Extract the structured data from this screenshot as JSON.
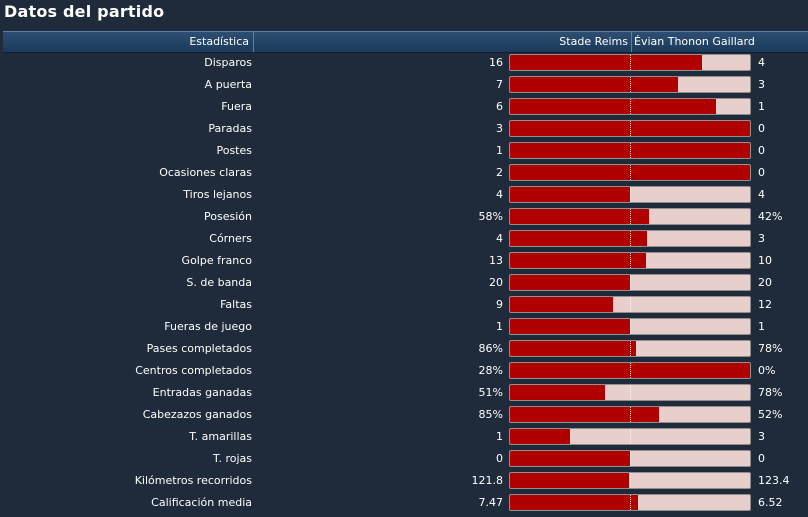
{
  "title": "Datos del partido",
  "header": {
    "stat": "Estadística",
    "home": "Stade Reims",
    "away": "Évian Thonon Gaillard"
  },
  "colors": {
    "home_bar": "#b00000",
    "away_bar": "#e8cfcb",
    "header_bg": "#1c3a5a",
    "page_bg": "#1f2b3a"
  },
  "rows": [
    {
      "label": "Disparos",
      "home": "16",
      "away": "4",
      "home_share": 0.8
    },
    {
      "label": "A puerta",
      "home": "7",
      "away": "3",
      "home_share": 0.7
    },
    {
      "label": "Fuera",
      "home": "6",
      "away": "1",
      "home_share": 0.857
    },
    {
      "label": "Paradas",
      "home": "3",
      "away": "0",
      "home_share": 1.0
    },
    {
      "label": "Postes",
      "home": "1",
      "away": "0",
      "home_share": 1.0
    },
    {
      "label": "Ocasiones claras",
      "home": "2",
      "away": "0",
      "home_share": 1.0
    },
    {
      "label": "Tiros lejanos",
      "home": "4",
      "away": "4",
      "home_share": 0.5
    },
    {
      "label": "Posesión",
      "home": "58%",
      "away": "42%",
      "home_share": 0.58
    },
    {
      "label": "Córners",
      "home": "4",
      "away": "3",
      "home_share": 0.571
    },
    {
      "label": "Golpe franco",
      "home": "13",
      "away": "10",
      "home_share": 0.565
    },
    {
      "label": "S. de banda",
      "home": "20",
      "away": "20",
      "home_share": 0.5
    },
    {
      "label": "Faltas",
      "home": "9",
      "away": "12",
      "home_share": 0.429
    },
    {
      "label": "Fueras de juego",
      "home": "1",
      "away": "1",
      "home_share": 0.5
    },
    {
      "label": "Pases completados",
      "home": "86%",
      "away": "78%",
      "home_share": 0.524
    },
    {
      "label": "Centros completados",
      "home": "28%",
      "away": "0%",
      "home_share": 1.0
    },
    {
      "label": "Entradas ganadas",
      "home": "51%",
      "away": "78%",
      "home_share": 0.395
    },
    {
      "label": "Cabezazos ganados",
      "home": "85%",
      "away": "52%",
      "home_share": 0.62
    },
    {
      "label": "T. amarillas",
      "home": "1",
      "away": "3",
      "home_share": 0.25
    },
    {
      "label": "T. rojas",
      "home": "0",
      "away": "0",
      "home_share": 0.5
    },
    {
      "label": "Kilómetros recorridos",
      "home": "121.8",
      "away": "123.4",
      "home_share": 0.497
    },
    {
      "label": "Calificación media",
      "home": "7.47",
      "away": "6.52",
      "home_share": 0.534
    }
  ]
}
